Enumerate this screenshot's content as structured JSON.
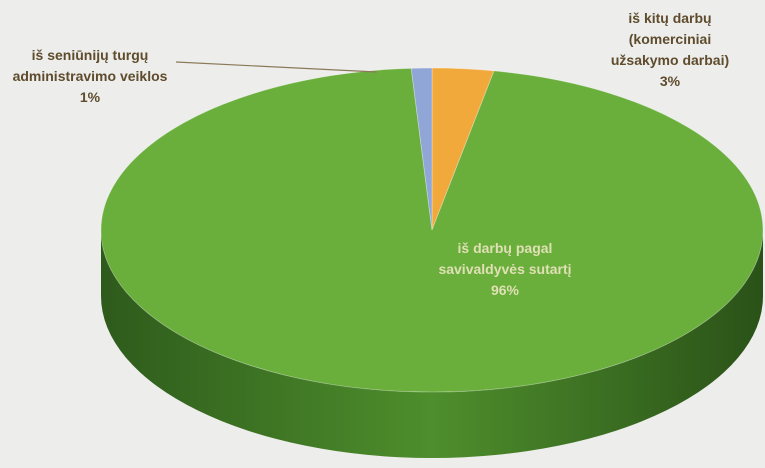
{
  "chart_data": {
    "type": "pie",
    "categories": [
      "iš kitų darbų (komerciniai užsakymo darbai)",
      "iš darbų pagal savivaldyvės sutartį",
      "iš seniūnijų turgų administravimo veiklos"
    ],
    "values": [
      3,
      96,
      1
    ],
    "value_labels": [
      "3%",
      "96%",
      "1%"
    ],
    "colors": [
      "#f2a93b",
      "#6aae3c",
      "#8fa6d6"
    ]
  }
}
